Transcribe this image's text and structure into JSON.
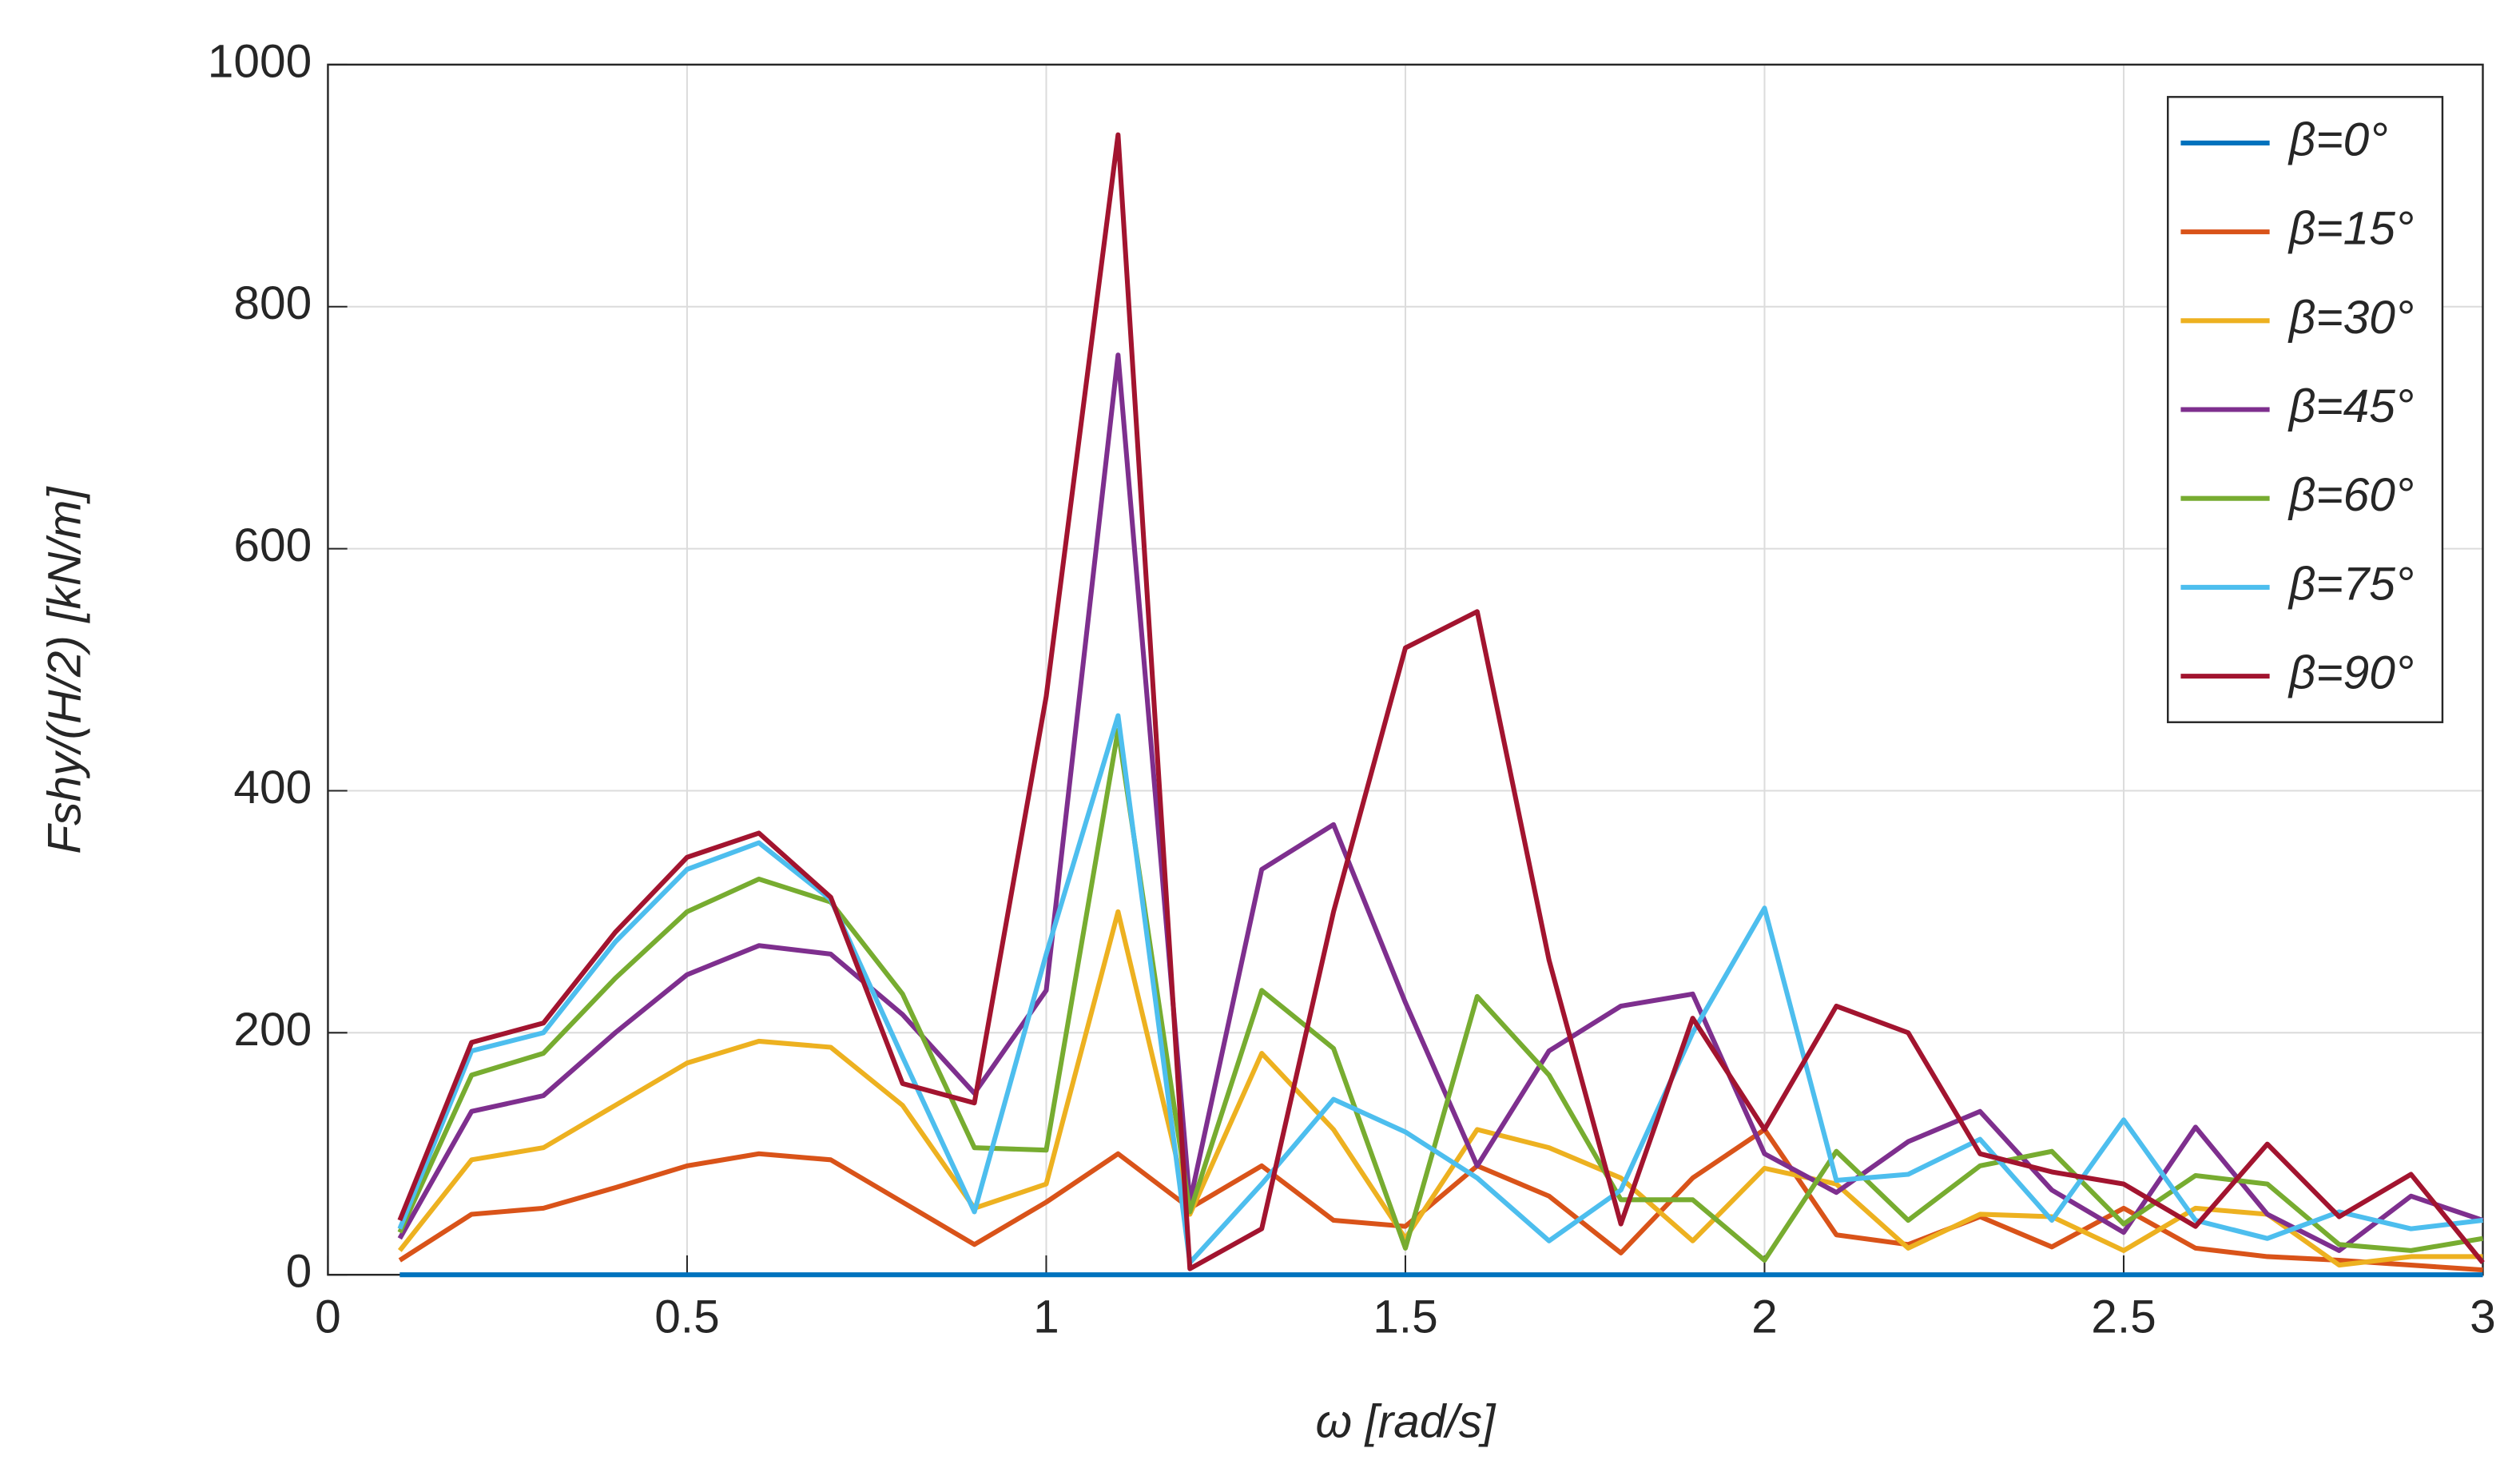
{
  "chart_data": {
    "type": "line",
    "x_label": "ω [rad/s]",
    "y_label": "Fshy/(H/2) [kN/m]",
    "x": [
      0.1,
      0.2,
      0.3,
      0.4,
      0.5,
      0.6,
      0.7,
      0.8,
      0.9,
      1.0,
      1.1,
      1.2,
      1.3,
      1.4,
      1.5,
      1.6,
      1.7,
      1.8,
      1.9,
      2.0,
      2.1,
      2.2,
      2.3,
      2.4,
      2.5,
      2.6,
      2.7,
      2.8,
      2.9,
      3.0
    ],
    "series": [
      {
        "name": "β=0°",
        "color": "#0072BD",
        "values": [
          0,
          0,
          0,
          0,
          0,
          0,
          0,
          0,
          0,
          0,
          0,
          0,
          0,
          0,
          0,
          0,
          0,
          0,
          0,
          0,
          0,
          0,
          0,
          0,
          0,
          0,
          0,
          0,
          0,
          0
        ]
      },
      {
        "name": "β=15°",
        "color": "#D95319",
        "values": [
          12,
          50,
          55,
          72,
          90,
          100,
          95,
          60,
          25,
          60,
          100,
          55,
          90,
          45,
          40,
          90,
          65,
          18,
          80,
          120,
          33,
          25,
          48,
          23,
          55,
          22,
          15,
          12,
          8,
          4
        ]
      },
      {
        "name": "β=30°",
        "color": "#EDB120",
        "values": [
          20,
          95,
          105,
          140,
          175,
          193,
          188,
          140,
          55,
          75,
          300,
          50,
          183,
          120,
          30,
          120,
          105,
          80,
          28,
          88,
          75,
          22,
          50,
          48,
          20,
          55,
          50,
          8,
          15,
          15
        ]
      },
      {
        "name": "β=45°",
        "color": "#7E2F8E",
        "values": [
          30,
          135,
          148,
          200,
          248,
          272,
          265,
          215,
          150,
          235,
          760,
          60,
          335,
          372,
          225,
          90,
          185,
          222,
          232,
          100,
          68,
          110,
          135,
          70,
          35,
          122,
          50,
          20,
          65,
          45
        ]
      },
      {
        "name": "β=60°",
        "color": "#77AC30",
        "values": [
          35,
          165,
          183,
          245,
          300,
          327,
          308,
          232,
          105,
          103,
          450,
          52,
          235,
          187,
          22,
          230,
          165,
          62,
          62,
          12,
          102,
          45,
          90,
          102,
          42,
          82,
          75,
          25,
          20,
          30
        ]
      },
      {
        "name": "β=75°",
        "color": "#4DBEEE",
        "values": [
          38,
          185,
          200,
          275,
          335,
          357,
          310,
          180,
          52,
          265,
          462,
          10,
          75,
          145,
          118,
          80,
          28,
          70,
          200,
          303,
          78,
          83,
          112,
          45,
          128,
          45,
          30,
          52,
          38,
          45
        ]
      },
      {
        "name": "β=90°",
        "color": "#A2142F",
        "values": [
          45,
          192,
          208,
          283,
          345,
          365,
          312,
          158,
          142,
          478,
          942,
          5,
          38,
          300,
          518,
          548,
          260,
          42,
          212,
          120,
          222,
          200,
          100,
          85,
          75,
          40,
          108,
          48,
          83,
          10
        ]
      }
    ],
    "xlim": [
      0,
      3
    ],
    "xticks": [
      0,
      0.5,
      1,
      1.5,
      2,
      2.5,
      3
    ],
    "ylim": [
      0,
      1000
    ],
    "yticks": [
      0,
      200,
      400,
      600,
      800,
      1000
    ],
    "grid": true,
    "legend": "upper right"
  }
}
